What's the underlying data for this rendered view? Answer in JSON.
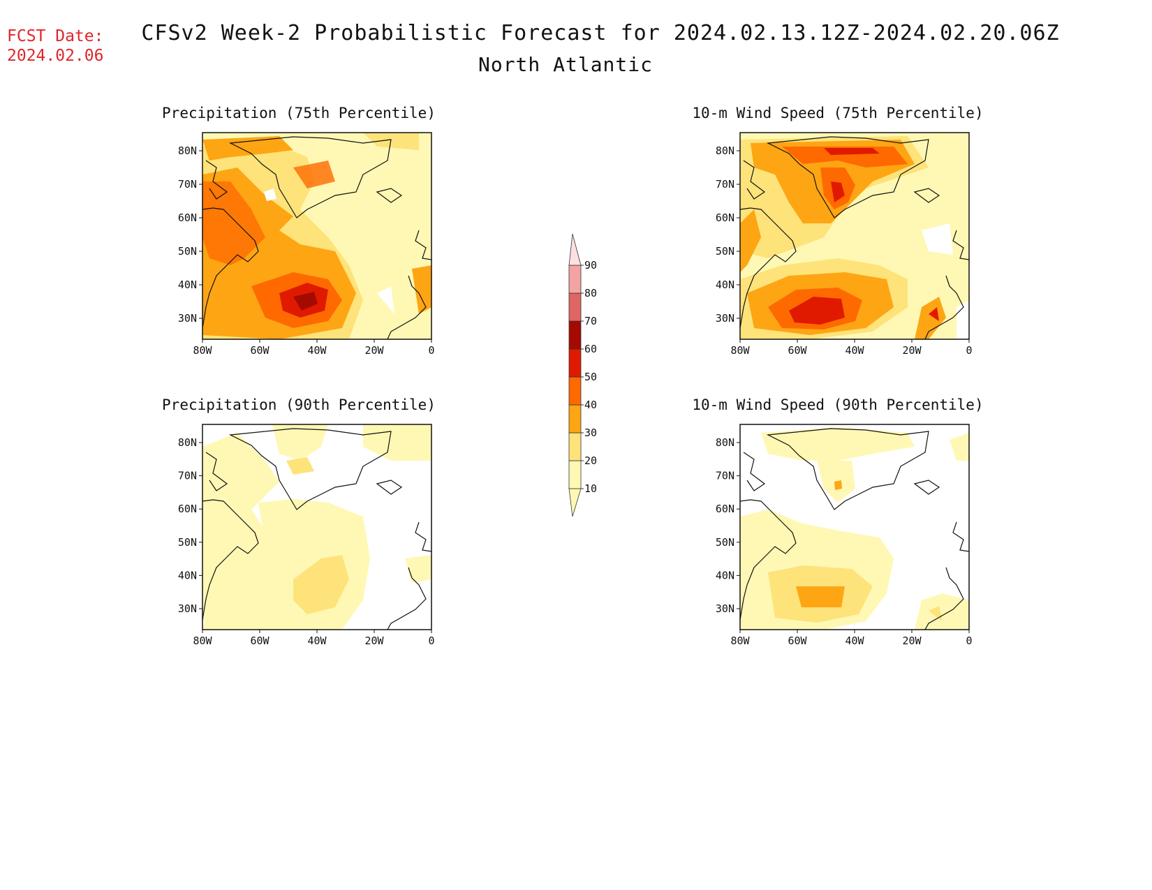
{
  "header": {
    "fcst_label": "FCST Date:",
    "fcst_date": "2024.02.06",
    "title": "CFSv2 Week-2 Probabilistic Forecast for 2024.02.13.12Z-2024.02.20.06Z",
    "subtitle": "North Atlantic"
  },
  "panels": [
    {
      "title": "Precipitation (75th Percentile)"
    },
    {
      "title": "10-m Wind Speed (75th Percentile)"
    },
    {
      "title": "Precipitation (90th Percentile)"
    },
    {
      "title": "10-m Wind Speed (90th Percentile)"
    }
  ],
  "axes": {
    "lat_labels": [
      "80N",
      "70N",
      "60N",
      "50N",
      "40N",
      "30N"
    ],
    "lon_labels": [
      "80W",
      "60W",
      "40W",
      "20W",
      "0"
    ]
  },
  "colorbar": {
    "levels": [
      "10",
      "20",
      "30",
      "40",
      "50",
      "60",
      "70",
      "80",
      "90"
    ],
    "colors": [
      "#fff8b4",
      "#fde37a",
      "#fea514",
      "#fe6a00",
      "#e01a00",
      "#a50a00",
      "#e06666",
      "#f4a3a3",
      "#fde0e0"
    ]
  }
}
